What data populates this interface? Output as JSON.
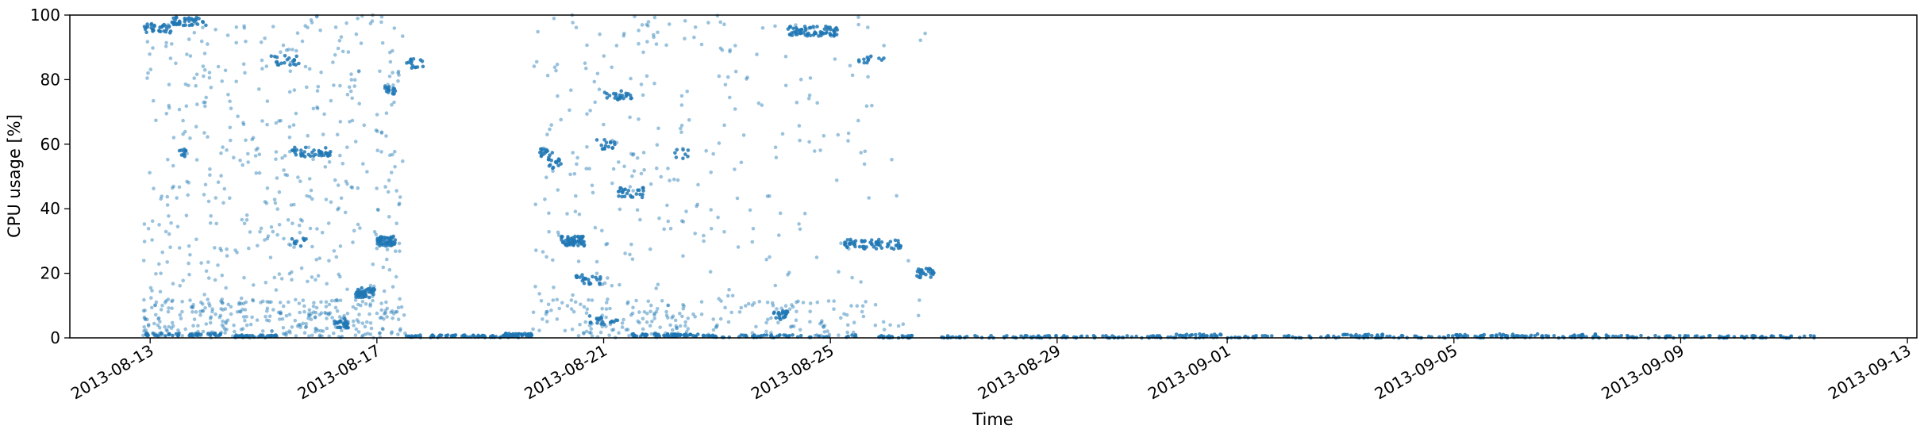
{
  "chart_data": {
    "type": "scatter",
    "title": "",
    "xlabel": "Time",
    "ylabel": "CPU usage [%]",
    "xlim": [
      "2013-08-11T14:00",
      "2013-09-13T04:00"
    ],
    "ylim": [
      0,
      100
    ],
    "x_ticks": [
      "2013-08-13",
      "2013-08-17",
      "2013-08-21",
      "2013-08-25",
      "2013-08-29",
      "2013-09-01",
      "2013-09-05",
      "2013-09-09",
      "2013-09-13"
    ],
    "y_ticks": [
      0,
      20,
      40,
      60,
      80,
      100
    ],
    "grid": false,
    "legend": "none",
    "point_color": "#1f77b4",
    "series": [
      {
        "bands": [
          {
            "t0": "2013-08-12T21:00",
            "t1": "2013-08-13T09:00",
            "y": 96,
            "n": 30
          },
          {
            "t0": "2013-08-13T09:00",
            "t1": "2013-08-14T00:00",
            "y": 98,
            "n": 40
          },
          {
            "t0": "2013-08-12T22:00",
            "t1": "2013-08-14T06:00",
            "y": 1,
            "n": 45
          },
          {
            "t0": "2013-08-13T12:00",
            "t1": "2013-08-13T16:00",
            "y": 57.5,
            "n": 10
          },
          {
            "t0": "2013-08-14T12:00",
            "t1": "2013-08-15T06:00",
            "y": 0.5,
            "n": 35
          },
          {
            "t0": "2013-08-15T03:00",
            "t1": "2013-08-15T15:00",
            "y": 86,
            "n": 20
          },
          {
            "t0": "2013-08-15T12:00",
            "t1": "2013-08-16T05:00",
            "y": 57.5,
            "n": 40
          },
          {
            "t0": "2013-08-15T12:00",
            "t1": "2013-08-15T18:00",
            "y": 29.5,
            "n": 10
          },
          {
            "t0": "2013-08-16T06:00",
            "t1": "2013-08-16T12:00",
            "y": 4.5,
            "n": 25
          },
          {
            "t0": "2013-08-16T15:00",
            "t1": "2013-08-16T23:00",
            "y": 14,
            "n": 45
          },
          {
            "t0": "2013-08-17T00:00",
            "t1": "2013-08-17T08:00",
            "y": 30,
            "n": 50
          },
          {
            "t0": "2013-08-17T12:00",
            "t1": "2013-08-17T20:00",
            "y": 85,
            "n": 15
          },
          {
            "t0": "2013-08-17T03:00",
            "t1": "2013-08-17T08:00",
            "y": 77,
            "n": 15
          },
          {
            "t0": "2013-08-17T12:00",
            "t1": "2013-08-19T12:00",
            "y": 0.5,
            "n": 70
          },
          {
            "t0": "2013-08-19T06:00",
            "t1": "2013-08-19T18:00",
            "y": 1,
            "n": 40
          },
          {
            "t0": "2013-08-19T21:00",
            "t1": "2013-08-20T03:00",
            "y": 57,
            "n": 15
          },
          {
            "t0": "2013-08-20T00:00",
            "t1": "2013-08-20T06:00",
            "y": 54,
            "n": 15
          },
          {
            "t0": "2013-08-20T06:00",
            "t1": "2013-08-20T16:00",
            "y": 30,
            "n": 55
          },
          {
            "t0": "2013-08-20T12:00",
            "t1": "2013-08-20T23:00",
            "y": 18,
            "n": 25
          },
          {
            "t0": "2013-08-20T21:00",
            "t1": "2013-08-21T06:00",
            "y": 60,
            "n": 15
          },
          {
            "t0": "2013-08-21T00:00",
            "t1": "2013-08-21T12:00",
            "y": 75,
            "n": 25
          },
          {
            "t0": "2013-08-21T06:00",
            "t1": "2013-08-21T18:00",
            "y": 45,
            "n": 25
          },
          {
            "t0": "2013-08-20T18:00",
            "t1": "2013-08-21T06:00",
            "y": 5.5,
            "n": 20
          },
          {
            "t0": "2013-08-21T12:00",
            "t1": "2013-08-22T18:00",
            "y": 0.8,
            "n": 60
          },
          {
            "t0": "2013-08-22T06:00",
            "t1": "2013-08-22T12:00",
            "y": 57,
            "n": 8
          },
          {
            "t0": "2013-08-24T00:00",
            "t1": "2013-08-24T06:00",
            "y": 7,
            "n": 20
          },
          {
            "t0": "2013-08-24T06:00",
            "t1": "2013-08-25T03:00",
            "y": 95,
            "n": 70
          },
          {
            "t0": "2013-08-22T18:00",
            "t1": "2013-08-25T12:00",
            "y": 0.5,
            "n": 60
          },
          {
            "t0": "2013-08-25T06:00",
            "t1": "2013-08-26T06:00",
            "y": 29,
            "n": 60
          },
          {
            "t0": "2013-08-25T12:00",
            "t1": "2013-08-26T00:00",
            "y": 86.5,
            "n": 12
          },
          {
            "t0": "2013-08-25T18:00",
            "t1": "2013-08-26T12:00",
            "y": 0.3,
            "n": 25
          },
          {
            "t0": "2013-08-26T12:00",
            "t1": "2013-08-26T20:00",
            "y": 20,
            "n": 25
          },
          {
            "t0": "2013-08-26T20:00",
            "t1": "2013-09-11T12:00",
            "y": 0.3,
            "n": 300
          },
          {
            "t0": "2013-08-31T00:00",
            "t1": "2013-09-01T00:00",
            "y": 0.8,
            "n": 20
          },
          {
            "t0": "2013-09-03T00:00",
            "t1": "2013-09-03T18:00",
            "y": 0.8,
            "n": 15
          },
          {
            "t0": "2013-09-05T00:00",
            "t1": "2013-09-06T12:00",
            "y": 0.8,
            "n": 25
          },
          {
            "t0": "2013-09-07T00:00",
            "t1": "2013-09-07T18:00",
            "y": 0.8,
            "n": 12
          }
        ],
        "scatter_ranges": [
          {
            "t0": "2013-08-12T21:00",
            "t1": "2013-08-16T14:00",
            "n": 600
          },
          {
            "t0": "2013-08-16T14:00",
            "t1": "2013-08-17T12:00",
            "n": 150
          },
          {
            "t0": "2013-08-19T18:00",
            "t1": "2013-08-22T12:00",
            "n": 280
          },
          {
            "t0": "2013-08-22T12:00",
            "t1": "2013-08-25T18:00",
            "n": 200
          },
          {
            "t0": "2013-08-25T18:00",
            "t1": "2013-08-26T18:00",
            "n": 15
          }
        ]
      }
    ]
  }
}
